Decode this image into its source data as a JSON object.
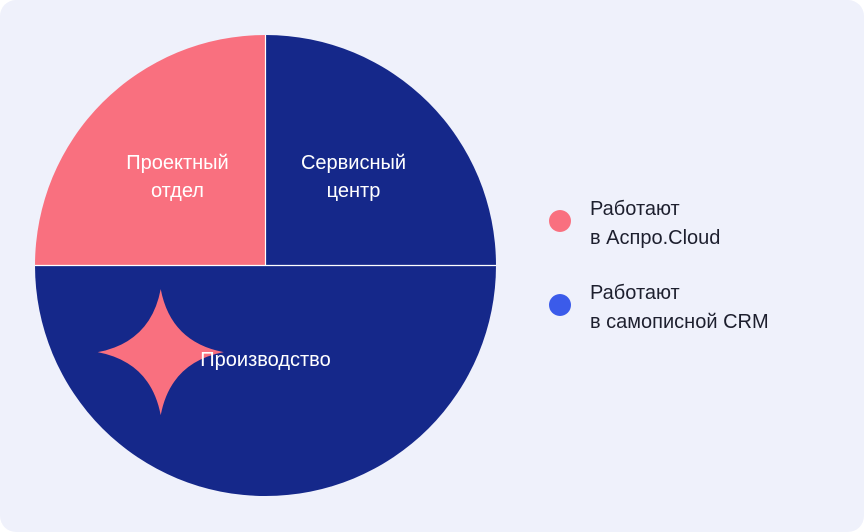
{
  "colors": {
    "background": "#eff1fb",
    "pink": "#f9707f",
    "navy": "#15288a",
    "blue": "#3b5bea",
    "divider": "#ffffff"
  },
  "chart_data": {
    "type": "pie",
    "title": "",
    "categories": [
      "Сервисный центр",
      "Производство",
      "Проектный отдел"
    ],
    "values": [
      25,
      50,
      25
    ],
    "start_angle_deg": 0,
    "slices": [
      {
        "label_lines": [
          "Сервисный",
          "центр"
        ],
        "value": 25,
        "color_key": "navy",
        "legend_group": 1
      },
      {
        "label_lines": [
          "Производство"
        ],
        "value": 50,
        "color_key": "navy",
        "legend_group": 1
      },
      {
        "label_lines": [
          "Проектный",
          "отдел"
        ],
        "value": 25,
        "color_key": "pink",
        "legend_group": 0
      }
    ],
    "legend": {
      "placement": "right",
      "entries": [
        {
          "lines": [
            "Работают",
            "в Аспро.Cloud"
          ],
          "color_key": "pink"
        },
        {
          "lines": [
            "Работают",
            "в самописной CRM"
          ],
          "color_key": "blue"
        }
      ]
    },
    "decoration": {
      "icon": "sparkle-icon",
      "color_key": "pink"
    }
  }
}
